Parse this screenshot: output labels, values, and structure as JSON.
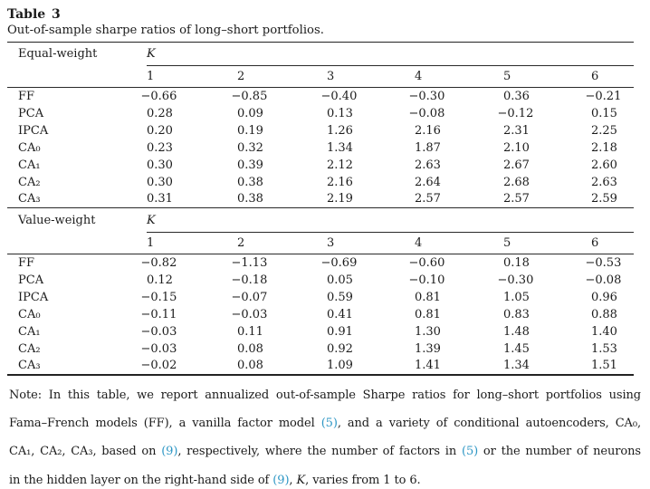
{
  "title": "Table 3",
  "subtitle": "Out-of-sample sharpe ratios of long–short portfolios.",
  "panels": [
    {
      "label": "Equal-weight",
      "k_label": "K",
      "columns": [
        "1",
        "2",
        "3",
        "4",
        "5",
        "6"
      ],
      "rows": [
        {
          "label": "FF",
          "values": [
            "−0.66",
            "−0.85",
            "−0.40",
            "−0.30",
            "0.36",
            "−0.21"
          ]
        },
        {
          "label": "PCA",
          "values": [
            "0.28",
            "0.09",
            "0.13",
            "−0.08",
            "−0.12",
            "0.15"
          ]
        },
        {
          "label": "IPCA",
          "values": [
            "0.20",
            "0.19",
            "1.26",
            "2.16",
            "2.31",
            "2.25"
          ]
        },
        {
          "label": "CA₀",
          "values": [
            "0.23",
            "0.32",
            "1.34",
            "1.87",
            "2.10",
            "2.18"
          ]
        },
        {
          "label": "CA₁",
          "values": [
            "0.30",
            "0.39",
            "2.12",
            "2.63",
            "2.67",
            "2.60"
          ]
        },
        {
          "label": "CA₂",
          "values": [
            "0.30",
            "0.38",
            "2.16",
            "2.64",
            "2.68",
            "2.63"
          ]
        },
        {
          "label": "CA₃",
          "values": [
            "0.31",
            "0.38",
            "2.19",
            "2.57",
            "2.57",
            "2.59"
          ]
        }
      ]
    },
    {
      "label": "Value-weight",
      "k_label": "K",
      "columns": [
        "1",
        "2",
        "3",
        "4",
        "5",
        "6"
      ],
      "rows": [
        {
          "label": "FF",
          "values": [
            "−0.82",
            "−1.13",
            "−0.69",
            "−0.60",
            "0.18",
            "−0.53"
          ]
        },
        {
          "label": "PCA",
          "values": [
            "0.12",
            "−0.18",
            "0.05",
            "−0.10",
            "−0.30",
            "−0.08"
          ]
        },
        {
          "label": "IPCA",
          "values": [
            "−0.15",
            "−0.07",
            "0.59",
            "0.81",
            "1.05",
            "0.96"
          ]
        },
        {
          "label": "CA₀",
          "values": [
            "−0.11",
            "−0.03",
            "0.41",
            "0.81",
            "0.83",
            "0.88"
          ]
        },
        {
          "label": "CA₁",
          "values": [
            "−0.03",
            "0.11",
            "0.91",
            "1.30",
            "1.48",
            "1.40"
          ]
        },
        {
          "label": "CA₂",
          "values": [
            "−0.03",
            "0.08",
            "0.92",
            "1.39",
            "1.45",
            "1.53"
          ]
        },
        {
          "label": "CA₃",
          "values": [
            "−0.02",
            "0.08",
            "1.09",
            "1.41",
            "1.34",
            "1.51"
          ]
        }
      ]
    }
  ],
  "note": {
    "l1": "Note: In this table, we report annualized out-of-sample Sharpe ratios for long–short portfolios using",
    "l2a": "Fama–French models (FF), a vanilla factor model ",
    "l2ref": "(5)",
    "l2b": ", and a variety of conditional autoencoders, CA₀,",
    "l3a": "CA₁, CA₂, CA₃, based on ",
    "l3ref1": "(9)",
    "l3b": ", respectively, where the number of factors in ",
    "l3ref2": "(5)",
    "l3c": " or the number of neurons",
    "l4a": "in the hidden layer on the right-hand side of ",
    "l4ref": "(9)",
    "l4b": ", ",
    "l4k": "K",
    "l4c": ", varies from 1 to 6."
  },
  "colors": {
    "reference_link": "#2e97c5",
    "text": "#1b1b1b",
    "rule": "#222222"
  }
}
